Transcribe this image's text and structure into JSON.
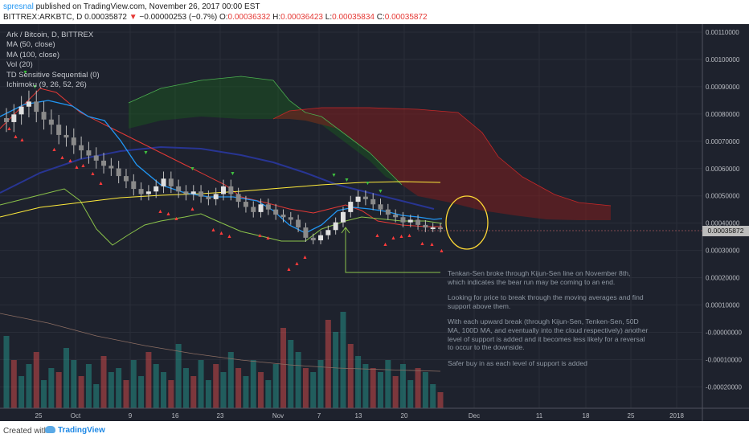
{
  "header": {
    "author": "spresnal",
    "published": " published on TradingView.com, November 26, 2017 00:00 EST",
    "symbol": "BITTREX:ARKBTC, D ",
    "open": "0.00035872",
    "change_arrow": "▼",
    "change": " −0.00000253 (−0.7%) ",
    "o_label": "O:",
    "o_value": "0.00036332",
    "h_label": " H:",
    "h_value": "0.00036423",
    "l_label": " L:",
    "l_value": "0.00035834",
    "c_label": " C:",
    "c_value": "0.00035872"
  },
  "legend": {
    "title": "Ark / Bitcoin, D, BITTREX",
    "ma50": "MA (50, close)",
    "ma100": "MA (100, close)",
    "vol": "Vol (20)",
    "td": "TD Sensitive Sequential (0)",
    "ichimoku": "Ichimoku (9, 26, 52, 26)"
  },
  "price_tag": "0.00035872",
  "annotation": {
    "p1": "Tenkan-Sen broke through Kijun-Sen line on November 8th, which indicates the bear run may be coming to an end.",
    "p2": "Looking for price to break through the moving averages and find support above them.",
    "p3": "With each upward break (through Kijun-Sen, Tenken-Sen,  50D MA, 100D MA, and eventually into the cloud respectively) another level of support is added and it becomes less likely for a reversal to occur to the downside.",
    "p4": "Safer buy in as each level of support is added"
  },
  "footer": {
    "created": "Created with",
    "brand": "TradingView"
  },
  "colors": {
    "background": "#1e222d",
    "ma50": "#2196f3",
    "ma100": "#283593",
    "tenkan": "#e53935",
    "kijun": "#8bc34a",
    "lagging": "#ffeb3b",
    "cloud_bull": "#1b5e20",
    "cloud_bear": "#7f1d1d",
    "candle": "#9e9e9e",
    "volume_up": "#26a69a",
    "volume_down": "#ef5350",
    "highlight_circle": "#fdd835"
  },
  "chart_data": {
    "type": "line",
    "y_ticks": [
      "0.00110000",
      "0.00100000",
      "0.00090000",
      "0.00080000",
      "0.00070000",
      "0.00060000",
      "0.00050000",
      "0.00040000",
      "0.00030000",
      "0.00020000",
      "0.00010000",
      "-0.00000000",
      "-0.00010000",
      "-0.00020000"
    ],
    "x_ticks": [
      "25",
      "Oct",
      "9",
      "16",
      "23",
      "Nov",
      "7",
      "13",
      "20",
      "Dec",
      "11",
      "18",
      "25",
      "2018"
    ],
    "ylim": [
      -0.00026,
      0.00112
    ],
    "candles_close": [
      0.00077,
      0.0008,
      0.00083,
      0.00085,
      0.00081,
      0.00078,
      0.00076,
      0.00072,
      0.00071,
      0.00068,
      0.00066,
      0.00064,
      0.00062,
      0.0006,
      0.00059,
      0.00056,
      0.00054,
      0.00051,
      0.00049,
      0.0005,
      0.00052,
      0.00055,
      0.00052,
      0.0005,
      0.00049,
      0.0005,
      0.00048,
      0.00047,
      0.00049,
      0.00052,
      0.00049,
      0.00046,
      0.00044,
      0.00042,
      0.00045,
      0.00043,
      0.00041,
      0.0004,
      0.00039,
      0.00036,
      0.00032,
      0.00031,
      0.00033,
      0.00035,
      0.00038,
      0.00042,
      0.00046,
      0.00048,
      0.00047,
      0.00045,
      0.00043,
      0.00041,
      0.0004,
      0.00038,
      0.00039,
      0.00037,
      0.00036,
      0.00036,
      0.000359
    ],
    "last_close": 0.00035872
  }
}
